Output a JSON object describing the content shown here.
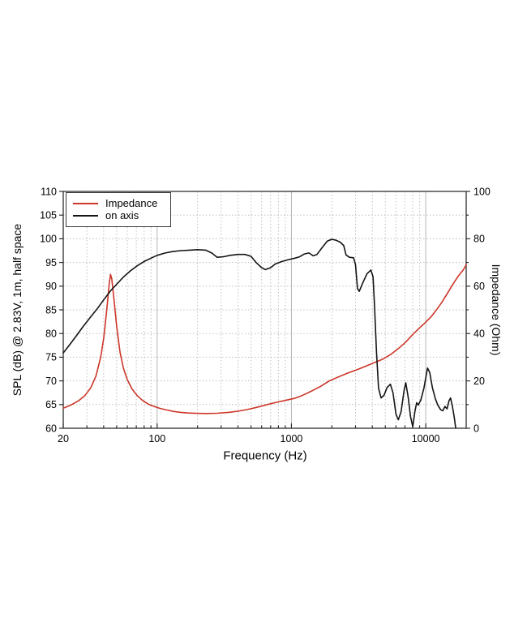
{
  "chart_data": {
    "type": "line",
    "xlabel": "Frequency (Hz)",
    "ylabel_left": "SPL (dB) @ 2.83V, 1m, half space",
    "ylabel_right": "Impedance (Ohm)",
    "x_scale": "log",
    "xlim": [
      20,
      20000
    ],
    "ylim_left": [
      60,
      110
    ],
    "ylim_right": [
      0,
      100
    ],
    "grid": true,
    "x_ticks_labeled": [
      20,
      100,
      1000,
      10000
    ],
    "x_ticks_major": [
      100,
      1000,
      10000
    ],
    "x_ticks_minor": [
      30,
      40,
      50,
      60,
      70,
      80,
      90,
      200,
      300,
      400,
      500,
      600,
      700,
      800,
      900,
      2000,
      3000,
      4000,
      5000,
      6000,
      7000,
      8000,
      9000
    ],
    "y_ticks_left": [
      60,
      65,
      70,
      75,
      80,
      85,
      90,
      95,
      100,
      105,
      110
    ],
    "y_gridlines_left": [
      65,
      70,
      75,
      80,
      85,
      90,
      95,
      100,
      105
    ],
    "y_ticks_right_labeled": [
      0,
      20,
      40,
      60,
      80,
      100
    ],
    "y_ticks_right_minor": [
      10,
      30,
      50,
      70,
      90
    ],
    "colors": {
      "impedance": "#cc3629",
      "on_axis": "#141414",
      "grid_minor": "#bfbfbf",
      "grid_major": "#b5b5b5",
      "frame": "#2e2e2e",
      "text": "#000000"
    },
    "legend": {
      "position": "top-left",
      "entries": [
        {
          "label": "Impedance",
          "color": "#cc3629"
        },
        {
          "label": "on axis",
          "color": "#141414"
        }
      ]
    },
    "series": [
      {
        "name": "Impedance",
        "axis": "right",
        "unit": "Ohm",
        "color": "#cc3629",
        "points": [
          [
            20,
            8.5
          ],
          [
            23,
            9.9
          ],
          [
            26,
            11.6
          ],
          [
            29,
            13.8
          ],
          [
            32,
            17
          ],
          [
            35,
            22
          ],
          [
            38,
            30
          ],
          [
            40,
            38
          ],
          [
            42,
            49
          ],
          [
            44,
            61
          ],
          [
            45,
            65
          ],
          [
            46,
            63
          ],
          [
            48,
            53
          ],
          [
            50,
            43
          ],
          [
            53,
            32
          ],
          [
            56,
            25.5
          ],
          [
            60,
            20.5
          ],
          [
            65,
            16.6
          ],
          [
            71,
            13.8
          ],
          [
            78,
            11.7
          ],
          [
            86,
            10.2
          ],
          [
            95,
            9.2
          ],
          [
            105,
            8.4
          ],
          [
            118,
            7.7
          ],
          [
            133,
            7.1
          ],
          [
            150,
            6.7
          ],
          [
            170,
            6.45
          ],
          [
            195,
            6.3
          ],
          [
            230,
            6.25
          ],
          [
            280,
            6.35
          ],
          [
            340,
            6.7
          ],
          [
            400,
            7.2
          ],
          [
            470,
            7.9
          ],
          [
            550,
            8.8
          ],
          [
            660,
            10.0
          ],
          [
            780,
            11.0
          ],
          [
            920,
            11.9
          ],
          [
            1050,
            12.6
          ],
          [
            1200,
            13.8
          ],
          [
            1400,
            15.6
          ],
          [
            1650,
            17.7
          ],
          [
            1900,
            19.9
          ],
          [
            2200,
            21.5
          ],
          [
            2600,
            23.2
          ],
          [
            3000,
            24.5
          ],
          [
            3500,
            26.0
          ],
          [
            4100,
            27.6
          ],
          [
            4800,
            29.2
          ],
          [
            5500,
            31.2
          ],
          [
            6300,
            33.8
          ],
          [
            7100,
            36.4
          ],
          [
            8000,
            39.6
          ],
          [
            9000,
            42.4
          ],
          [
            10000,
            44.8
          ],
          [
            11000,
            47.2
          ],
          [
            12100,
            50.2
          ],
          [
            13300,
            53.5
          ],
          [
            14700,
            57.5
          ],
          [
            16000,
            61.0
          ],
          [
            17500,
            64.3
          ],
          [
            19000,
            66.8
          ],
          [
            20000,
            69.0
          ]
        ]
      },
      {
        "name": "on axis",
        "axis": "left",
        "unit": "dB",
        "color": "#141414",
        "points": [
          [
            20,
            75.9
          ],
          [
            22,
            77.4
          ],
          [
            25,
            79.5
          ],
          [
            28,
            81.4
          ],
          [
            32,
            83.5
          ],
          [
            36,
            85.3
          ],
          [
            40,
            87.1
          ],
          [
            45,
            89.0
          ],
          [
            50,
            90.4
          ],
          [
            56,
            91.9
          ],
          [
            63,
            93.2
          ],
          [
            71,
            94.3
          ],
          [
            80,
            95.2
          ],
          [
            90,
            95.9
          ],
          [
            100,
            96.5
          ],
          [
            115,
            97.0
          ],
          [
            130,
            97.3
          ],
          [
            150,
            97.5
          ],
          [
            175,
            97.6
          ],
          [
            200,
            97.7
          ],
          [
            230,
            97.6
          ],
          [
            255,
            97.0
          ],
          [
            280,
            96.1
          ],
          [
            310,
            96.2
          ],
          [
            350,
            96.5
          ],
          [
            400,
            96.7
          ],
          [
            450,
            96.7
          ],
          [
            500,
            96.3
          ],
          [
            550,
            94.9
          ],
          [
            600,
            93.9
          ],
          [
            640,
            93.5
          ],
          [
            700,
            93.9
          ],
          [
            760,
            94.7
          ],
          [
            850,
            95.2
          ],
          [
            950,
            95.6
          ],
          [
            1060,
            95.9
          ],
          [
            1150,
            96.2
          ],
          [
            1250,
            96.8
          ],
          [
            1350,
            97.0
          ],
          [
            1450,
            96.4
          ],
          [
            1550,
            96.7
          ],
          [
            1700,
            98.2
          ],
          [
            1850,
            99.5
          ],
          [
            2000,
            99.9
          ],
          [
            2150,
            99.7
          ],
          [
            2300,
            99.3
          ],
          [
            2450,
            98.6
          ],
          [
            2550,
            96.6
          ],
          [
            2700,
            96.1
          ],
          [
            2900,
            96.0
          ],
          [
            3000,
            94.5
          ],
          [
            3100,
            89.5
          ],
          [
            3200,
            88.9
          ],
          [
            3400,
            90.7
          ],
          [
            3650,
            92.6
          ],
          [
            3900,
            93.4
          ],
          [
            4050,
            92.0
          ],
          [
            4150,
            86.0
          ],
          [
            4300,
            76.0
          ],
          [
            4450,
            68.5
          ],
          [
            4650,
            66.4
          ],
          [
            4900,
            67.0
          ],
          [
            5150,
            68.6
          ],
          [
            5450,
            69.3
          ],
          [
            5700,
            67.5
          ],
          [
            6000,
            63.0
          ],
          [
            6250,
            61.8
          ],
          [
            6550,
            63.5
          ],
          [
            6900,
            68.0
          ],
          [
            7100,
            69.6
          ],
          [
            7400,
            66.5
          ],
          [
            7700,
            62.5
          ],
          [
            8000,
            60.3
          ],
          [
            8300,
            63.5
          ],
          [
            8550,
            65.4
          ],
          [
            8800,
            64.9
          ],
          [
            9200,
            66.0
          ],
          [
            9700,
            68.5
          ],
          [
            10300,
            72.7
          ],
          [
            10700,
            71.8
          ],
          [
            11200,
            68.6
          ],
          [
            11800,
            66.2
          ],
          [
            12300,
            64.9
          ],
          [
            12900,
            63.9
          ],
          [
            13400,
            63.7
          ],
          [
            13900,
            64.6
          ],
          [
            14400,
            64.1
          ],
          [
            14900,
            65.8
          ],
          [
            15300,
            66.4
          ],
          [
            15800,
            64.6
          ],
          [
            16300,
            62.3
          ],
          [
            16700,
            60.1
          ]
        ]
      }
    ]
  }
}
